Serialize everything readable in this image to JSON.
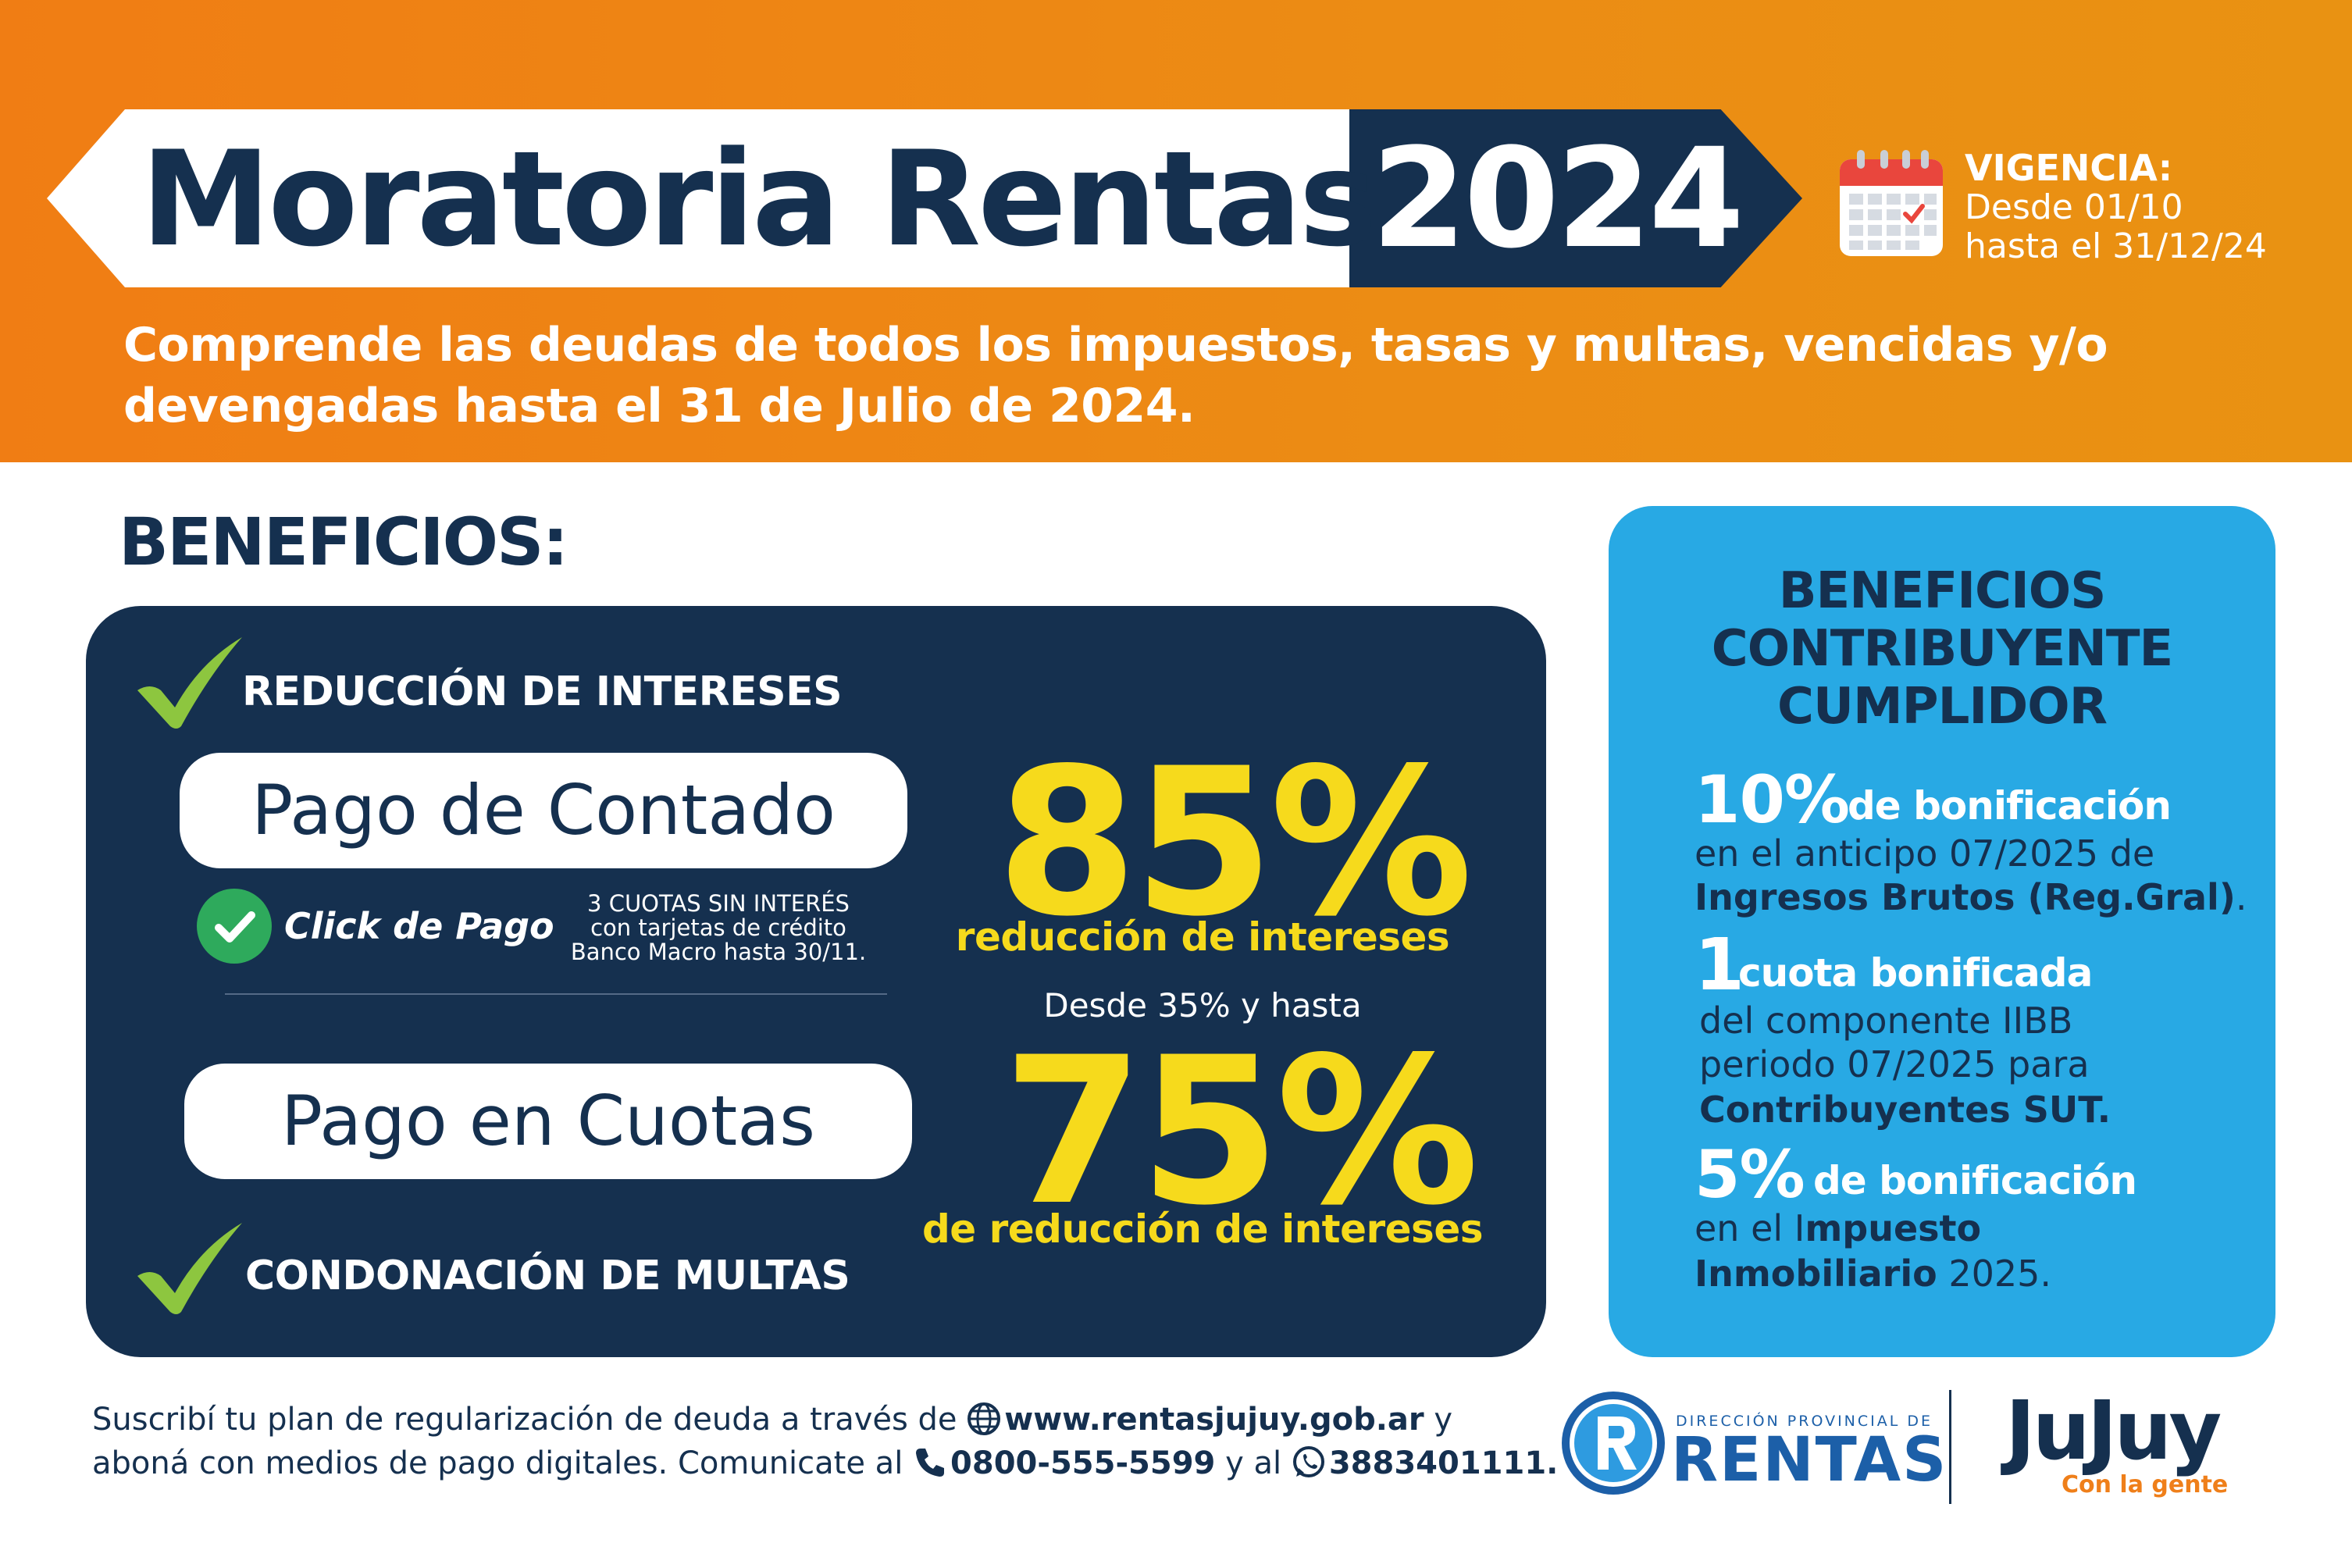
{
  "header": {
    "title": "Moratoria Rentas",
    "year": "2024",
    "vigencia": {
      "label": "VIGENCIA:",
      "from": "Desde 01/10",
      "until": "hasta el 31/12/24"
    },
    "intro": [
      "Comprende las deudas de todos los impuestos, tasas y multas, vencidas y/o",
      "devengadas hasta el 31 de Julio de 2024."
    ]
  },
  "beneficios": {
    "title": "BENEFICIOS:",
    "reduccion_label": "REDUCCIÓN DE INTERESES",
    "contado": {
      "label": "Pago de Contado",
      "percent": "85%",
      "caption": "reducción de intereses"
    },
    "click_de_pago": {
      "label": "Click de Pago",
      "note": [
        "3 CUOTAS SIN INTERÉS",
        "con tarjetas de crédito",
        "Banco Macro hasta 30/11."
      ]
    },
    "cuotas": {
      "label": "Pago en Cuotas",
      "pre": "Desde 35% y hasta",
      "percent": "75%",
      "caption": "de reducción de intereses"
    },
    "condonacion_label": "CONDONACIÓN DE MULTAS"
  },
  "cumplidor": {
    "title": [
      "BENEFICIOS",
      "CONTRIBUYENTE",
      "CUMPLIDOR"
    ],
    "items": [
      {
        "big": "10%",
        "headline": "de bonificación",
        "line1": "en el anticipo 07/2025 de",
        "line2_bold": "Ingresos Brutos (Reg.Gral)",
        "line2_tail": "."
      },
      {
        "big": "1",
        "headline": "cuota bonificada",
        "line1": "del componente IIBB",
        "line2": "periodo 07/2025 para",
        "line3_bold": "Contribuyentes SUT."
      },
      {
        "big": "5%",
        "headline": "de bonificación",
        "line1_pre": "en el I",
        "line1_bold": "mpuesto",
        "line2_bold": "Inmobiliario",
        "line2_tail": " 2025."
      }
    ]
  },
  "footer": {
    "line1_pre": "Suscribí tu plan de regularización de deuda a través de",
    "website": "www.rentasjujuy.gob.ar",
    "line1_post": "y",
    "line2_pre": "aboná con medios de pago digitales. Comunicate al",
    "phone": "0800-555-5599",
    "line2_mid": "y al",
    "whatsapp": "3883401111.",
    "rentas_small": "DIRECCIÓN PROVINCIAL DE",
    "rentas_big": "RENTAS",
    "jujuy": "JuJuy",
    "jujuy_tag": "Con la gente"
  },
  "colors": {
    "orange": "#f07d14",
    "navy": "#15304f",
    "yellow": "#f6da1c",
    "green": "#8dc63f",
    "light_blue": "#28a9e4",
    "rentas_blue": "#1c5fa8"
  },
  "icons": [
    "calendar-icon",
    "check-icon",
    "click-de-pago-check-icon",
    "globe-icon",
    "phone-icon",
    "whatsapp-icon",
    "rentas-logo"
  ]
}
